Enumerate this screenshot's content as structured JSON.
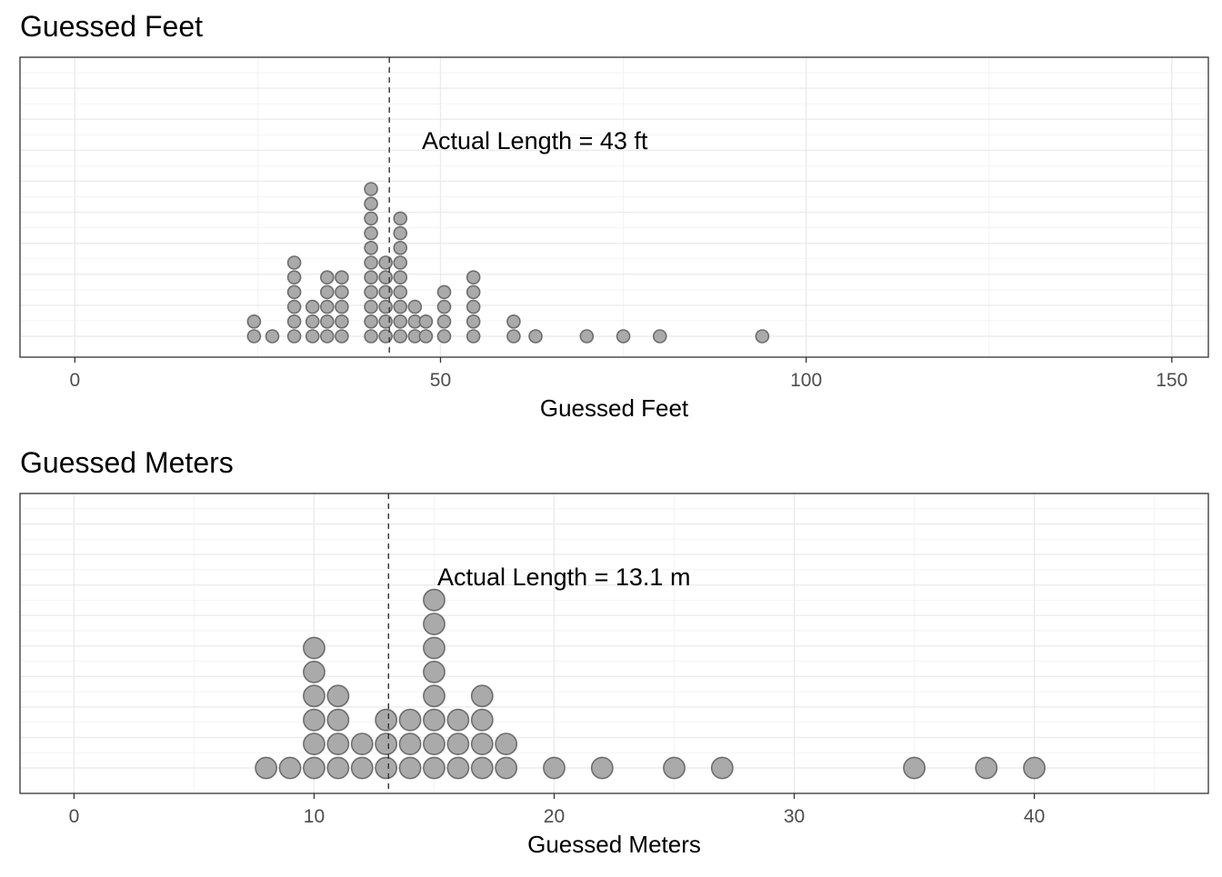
{
  "chart_data": [
    {
      "type": "scatter",
      "subtype": "dotplot",
      "title": "Guessed Feet",
      "xlabel": "Guessed Feet",
      "ylabel": "",
      "xlim": [
        -7.5,
        155
      ],
      "xticks": [
        0,
        50,
        100,
        150
      ],
      "tick_labels": [
        "0",
        "50",
        "100",
        "150"
      ],
      "grid": true,
      "reference_line": {
        "x": 43,
        "style": "dashed",
        "label": "Actual Length = 43 ft"
      },
      "bin_width": 2,
      "stacks": [
        {
          "x": 24.5,
          "count": 2
        },
        {
          "x": 27,
          "count": 1
        },
        {
          "x": 30,
          "count": 6
        },
        {
          "x": 32.5,
          "count": 3
        },
        {
          "x": 34.5,
          "count": 5
        },
        {
          "x": 36.5,
          "count": 5
        },
        {
          "x": 40.5,
          "count": 11
        },
        {
          "x": 42.5,
          "count": 6
        },
        {
          "x": 44.5,
          "count": 9
        },
        {
          "x": 46.5,
          "count": 3
        },
        {
          "x": 48,
          "count": 2
        },
        {
          "x": 50.5,
          "count": 4
        },
        {
          "x": 54.5,
          "count": 5
        },
        {
          "x": 60,
          "count": 2
        },
        {
          "x": 63,
          "count": 1
        },
        {
          "x": 70,
          "count": 1
        },
        {
          "x": 75,
          "count": 1
        },
        {
          "x": 80,
          "count": 1
        },
        {
          "x": 94,
          "count": 1
        }
      ],
      "color": "#aaaaaa",
      "edge_color": "#6e6e6e"
    },
    {
      "type": "scatter",
      "subtype": "dotplot",
      "title": "Guessed Meters",
      "xlabel": "Guessed Meters",
      "ylabel": "",
      "xlim": [
        -2.25,
        47.25
      ],
      "xticks": [
        0,
        10,
        20,
        30,
        40
      ],
      "tick_labels": [
        "0",
        "10",
        "20",
        "30",
        "40"
      ],
      "grid": true,
      "reference_line": {
        "x": 13.1,
        "style": "dashed",
        "label": "Actual Length = 13.1 m"
      },
      "bin_width": 1,
      "stacks": [
        {
          "x": 8,
          "count": 1
        },
        {
          "x": 9,
          "count": 1
        },
        {
          "x": 10,
          "count": 6
        },
        {
          "x": 11,
          "count": 4
        },
        {
          "x": 12,
          "count": 2
        },
        {
          "x": 13,
          "count": 3
        },
        {
          "x": 14,
          "count": 3
        },
        {
          "x": 15,
          "count": 8
        },
        {
          "x": 16,
          "count": 3
        },
        {
          "x": 17,
          "count": 4
        },
        {
          "x": 18,
          "count": 2
        },
        {
          "x": 20,
          "count": 1
        },
        {
          "x": 22,
          "count": 1
        },
        {
          "x": 25,
          "count": 1
        },
        {
          "x": 27,
          "count": 1
        },
        {
          "x": 35,
          "count": 1
        },
        {
          "x": 38,
          "count": 1
        },
        {
          "x": 40,
          "count": 1
        }
      ],
      "color": "#aaaaaa",
      "edge_color": "#6e6e6e"
    }
  ]
}
